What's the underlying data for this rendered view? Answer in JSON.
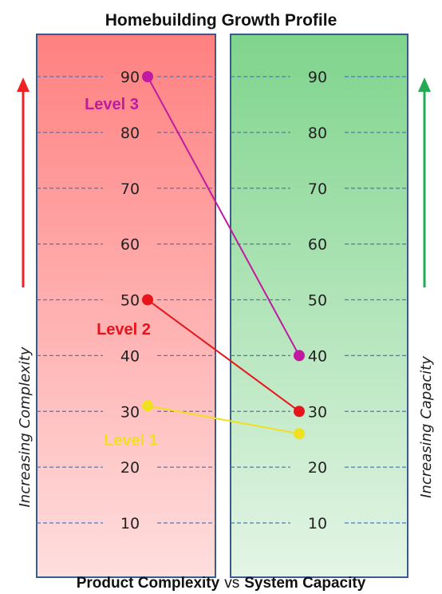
{
  "chart_data": {
    "type": "slope",
    "title": "Homebuilding Growth Profile",
    "footer": {
      "left": "Product Complexity",
      "middle": "vs",
      "right": "System Capacity"
    },
    "axes": [
      {
        "name": "Product Complexity",
        "side_label": "Increasing Complexity",
        "ticks": [
          10,
          20,
          30,
          40,
          50,
          60,
          70,
          80,
          90
        ],
        "fill_colors": [
          "#ff8080",
          "#ffdede"
        ],
        "arrow_color": "#ee2222"
      },
      {
        "name": "System Capacity",
        "side_label": "Increasing Capacity",
        "ticks": [
          10,
          20,
          30,
          40,
          50,
          60,
          70,
          80,
          90
        ],
        "fill_colors": [
          "#7fd48c",
          "#e4f5e6"
        ],
        "arrow_color": "#22aa55"
      }
    ],
    "ylim": [
      0,
      100
    ],
    "series": [
      {
        "name": "Level 1",
        "complexity": 31,
        "capacity": 26,
        "color": "#f0e020"
      },
      {
        "name": "Level 2",
        "complexity": 50,
        "capacity": 30,
        "color": "#e8141c"
      },
      {
        "name": "Level 3",
        "complexity": 90,
        "capacity": 40,
        "color": "#c01aa0"
      }
    ]
  }
}
